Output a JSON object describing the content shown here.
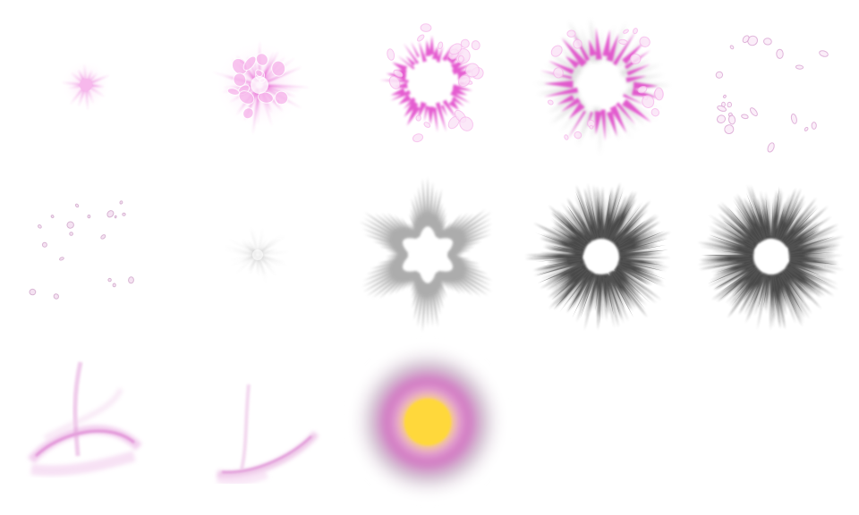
{
  "sheet": {
    "description_visible_text": "",
    "colors": {
      "background": "#ffffff",
      "magenta": "#e040c8",
      "magenta_light": "#f7b8ec",
      "magenta_pale": "#f1d6ee",
      "gray_burst": "#8a8a8a",
      "black_burst": "#1a1a1a",
      "swoosh": "#e7a6e0",
      "glow_core": "#ffd83a",
      "glow_ring": "#d070c0",
      "glow_outer": "#c9b6c8"
    },
    "frames": [
      {
        "id": "burst-small-magenta",
        "kind": "spark-burst",
        "color": "magenta"
      },
      {
        "id": "burst-medium-magenta",
        "kind": "spark-burst",
        "color": "magenta"
      },
      {
        "id": "burst-ring-magenta",
        "kind": "spark-ring",
        "color": "magenta"
      },
      {
        "id": "burst-large-magenta",
        "kind": "spark-ring",
        "color": "magenta"
      },
      {
        "id": "particles-scatter-1",
        "kind": "particles",
        "color": "magenta_pale"
      },
      {
        "id": "particles-scatter-2",
        "kind": "particles",
        "color": "magenta_pale"
      },
      {
        "id": "gray-burst-small",
        "kind": "ray-burst",
        "color": "gray_burst"
      },
      {
        "id": "gray-star-burst",
        "kind": "star-burst",
        "color": "gray_burst"
      },
      {
        "id": "black-ray-burst-1",
        "kind": "ray-ring",
        "color": "black_burst"
      },
      {
        "id": "black-ray-burst-2",
        "kind": "ray-ring",
        "color": "black_burst"
      },
      {
        "id": "swoosh-arc-1",
        "kind": "swoosh",
        "color": "swoosh"
      },
      {
        "id": "swoosh-arc-2",
        "kind": "swoosh",
        "color": "swoosh"
      },
      {
        "id": "radial-glow",
        "kind": "glow",
        "color": "glow_core"
      }
    ]
  }
}
